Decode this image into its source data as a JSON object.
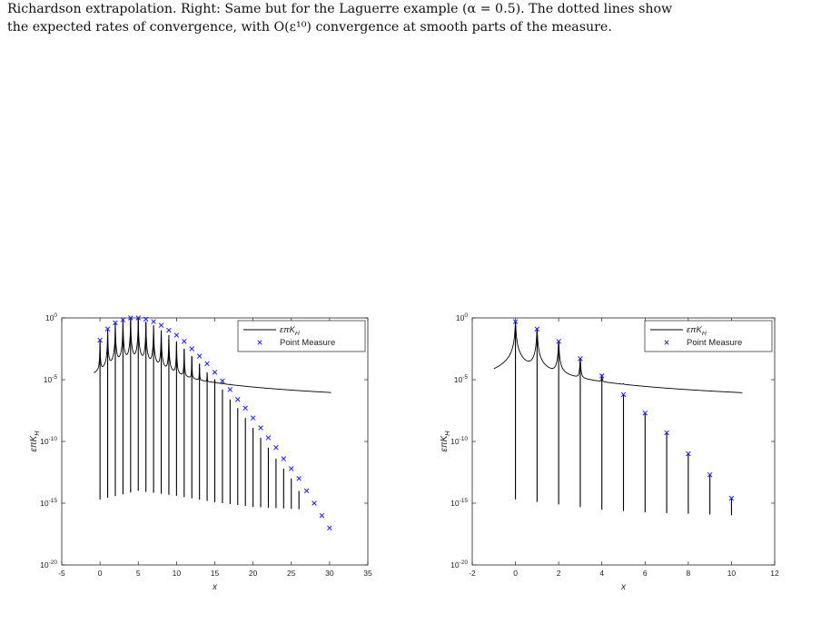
{
  "caption": {
    "line1": "Richardson extrapolation. Right: Same but for the Laguerre example (α = 0.5). The dotted lines show",
    "line2": "the expected rates of convergence, with O(ε¹⁰) convergence at smooth parts of the measure."
  },
  "chart_data": [
    {
      "type": "line",
      "xlabel": "x",
      "ylabel": "επK_H",
      "y_scale": "log",
      "xlim": [
        -5,
        35
      ],
      "ylim": [
        1e-20,
        1
      ],
      "xticks": [
        "-5",
        "0",
        "5",
        "10",
        "15",
        "20",
        "25",
        "30",
        "35"
      ],
      "yticks": [
        "10^0",
        "10^-5",
        "10^-10",
        "10^-15",
        "10^-20"
      ],
      "legend_position": "top-right",
      "series": [
        {
          "name": "επK_H",
          "style": "solid-black-line",
          "baseline": [
            [
              -0.8,
              1e-15
            ],
            [
              0,
              2e-15
            ],
            [
              5,
              1e-14
            ],
            [
              10,
              4e-15
            ],
            [
              15,
              1.2e-15
            ],
            [
              20,
              5e-16
            ],
            [
              25,
              3.5e-16
            ],
            [
              30.2,
              2.5e-16
            ]
          ],
          "spike_peaks_log10": [
            -1.8,
            -0.9,
            -0.4,
            -0.15,
            0,
            0,
            -0.3,
            -0.6,
            -1.0,
            -1.4,
            -1.9,
            -2.5,
            -3.1,
            -3.7,
            -4.4,
            -5.1,
            -5.8,
            -6.6,
            -7.3,
            -8.1,
            -8.9,
            -9.7,
            -10.5,
            -11.4,
            -12.2,
            -13.0,
            -14.0
          ]
        },
        {
          "name": "Point Measure",
          "style": "blue-x-markers",
          "x": [
            0,
            1,
            2,
            3,
            4,
            5,
            6,
            7,
            8,
            9,
            10,
            11,
            12,
            13,
            14,
            15,
            16,
            17,
            18,
            19,
            20,
            21,
            22,
            23,
            24,
            25,
            26,
            27,
            28,
            29,
            30
          ],
          "y_log10": [
            -1.8,
            -0.9,
            -0.4,
            -0.15,
            0,
            0,
            -0.1,
            -0.3,
            -0.6,
            -1.0,
            -1.4,
            -1.9,
            -2.5,
            -3.1,
            -3.7,
            -4.4,
            -5.1,
            -5.8,
            -6.6,
            -7.3,
            -8.1,
            -8.9,
            -9.7,
            -10.5,
            -11.4,
            -12.2,
            -13.0,
            -14.0,
            -15.0,
            -16.0,
            -17.0
          ]
        }
      ]
    },
    {
      "type": "line",
      "xlabel": "x",
      "ylabel": "επK_H",
      "y_scale": "log",
      "xlim": [
        -2,
        12
      ],
      "ylim": [
        1e-20,
        1
      ],
      "xticks": [
        "-2",
        "0",
        "2",
        "4",
        "6",
        "8",
        "10",
        "12"
      ],
      "yticks": [
        "10^0",
        "10^-5",
        "10^-10",
        "10^-15",
        "10^-20"
      ],
      "legend_position": "top-right",
      "series": [
        {
          "name": "επK_H",
          "style": "solid-black-line",
          "baseline": [
            [
              -1,
              1e-15
            ],
            [
              0,
              2e-15
            ],
            [
              2,
              8e-16
            ],
            [
              4,
              3e-16
            ],
            [
              6,
              1.8e-16
            ],
            [
              8,
              1.4e-16
            ],
            [
              10.5,
              1e-16
            ]
          ],
          "spike_peaks_log10": [
            -0.3,
            -0.9,
            -1.9,
            -3.3,
            -4.7,
            -6.2,
            -7.7,
            -9.3,
            -11.0,
            -12.7,
            -14.6
          ]
        },
        {
          "name": "Point Measure",
          "style": "blue-x-markers",
          "x": [
            0,
            1,
            2,
            3,
            4,
            5,
            6,
            7,
            8,
            9,
            10
          ],
          "y_log10": [
            -0.3,
            -0.9,
            -1.9,
            -3.3,
            -4.7,
            -6.2,
            -7.7,
            -9.3,
            -11.0,
            -12.7,
            -14.6
          ]
        }
      ]
    }
  ]
}
